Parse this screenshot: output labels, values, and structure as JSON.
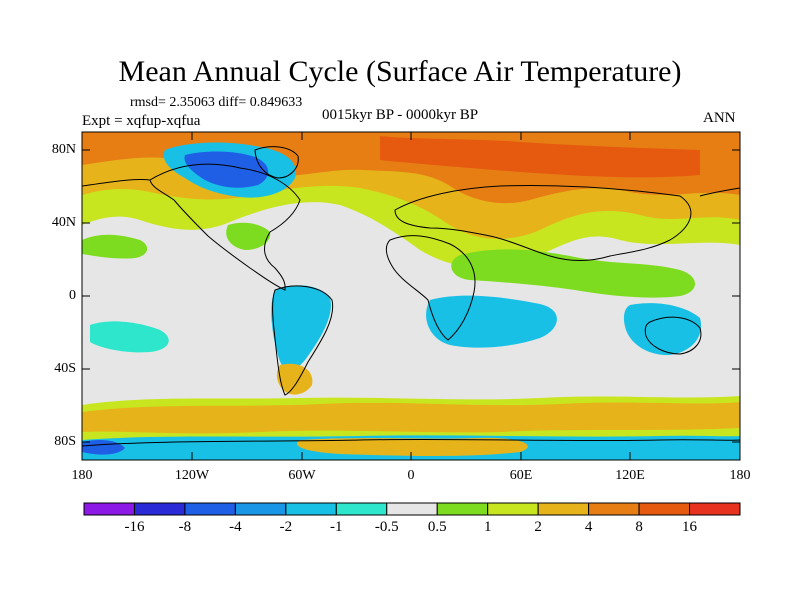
{
  "title": "Mean Annual Cycle (Surface Air Temperature)",
  "stats": "rmsd= 2.35063 diff= 0.849633",
  "experiment": "Expt = xqfup-xqfua",
  "period": "0015kyr BP - 0000kyr BP",
  "season": "ANN",
  "lat_labels": [
    "80N",
    "40N",
    "0",
    "40S",
    "80S"
  ],
  "lon_labels": [
    "180",
    "120W",
    "60W",
    "0",
    "60E",
    "120E",
    "180"
  ],
  "colorbar": {
    "colors": [
      "#8c19e6",
      "#2a2ad6",
      "#1e5fe6",
      "#1a96e6",
      "#19c0e6",
      "#2ee6cc",
      "#e6e6e6",
      "#7ddc1f",
      "#c8e61f",
      "#e6b41a",
      "#e67e14",
      "#e65a0f",
      "#e6321e"
    ],
    "labels": [
      "-16",
      "-8",
      "-4",
      "-2",
      "-1",
      "-0.5",
      "0.5",
      "1",
      "2",
      "4",
      "8",
      "16"
    ]
  }
}
